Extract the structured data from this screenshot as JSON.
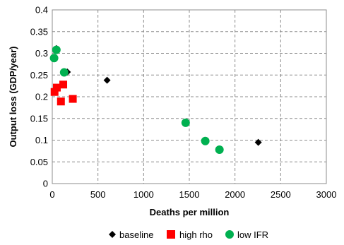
{
  "chart_data": {
    "type": "scatter",
    "title": "",
    "xlabel": "Deaths per million",
    "ylabel": "Output loss (GDP/year)",
    "xlim": [
      0,
      3000
    ],
    "ylim": [
      0,
      0.4
    ],
    "x_ticks": [
      0,
      500,
      1000,
      1500,
      2000,
      2500,
      3000
    ],
    "y_ticks": [
      0,
      0.05,
      0.1,
      0.15,
      0.2,
      0.25,
      0.3,
      0.35,
      0.4
    ],
    "y_tick_labels": [
      "0",
      "0.05",
      "0.1",
      "0.15",
      "0.2",
      "0.25",
      "0.3",
      "0.35",
      "0.4"
    ],
    "grid": true,
    "legend_position": "bottom",
    "series": [
      {
        "name": "baseline",
        "marker": "diamond",
        "color": "#000000",
        "points": [
          {
            "x": 45,
            "y": 0.311
          },
          {
            "x": 165,
            "y": 0.257
          },
          {
            "x": 600,
            "y": 0.238
          },
          {
            "x": 2255,
            "y": 0.095
          }
        ]
      },
      {
        "name": "high rho",
        "marker": "square",
        "color": "#ff0000",
        "points": [
          {
            "x": 25,
            "y": 0.211
          },
          {
            "x": 50,
            "y": 0.221
          },
          {
            "x": 95,
            "y": 0.189
          },
          {
            "x": 120,
            "y": 0.228
          },
          {
            "x": 225,
            "y": 0.195
          }
        ]
      },
      {
        "name": "low IFR",
        "marker": "circle",
        "color": "#00b050",
        "points": [
          {
            "x": 20,
            "y": 0.289
          },
          {
            "x": 45,
            "y": 0.308
          },
          {
            "x": 130,
            "y": 0.256
          },
          {
            "x": 1460,
            "y": 0.14
          },
          {
            "x": 1675,
            "y": 0.098
          },
          {
            "x": 1830,
            "y": 0.078
          }
        ]
      }
    ]
  }
}
